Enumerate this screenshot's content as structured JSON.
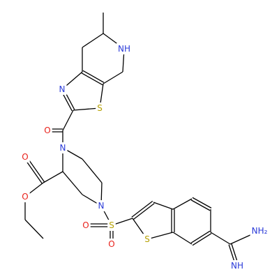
{
  "atoms": [
    {
      "label": "NH"
    },
    {
      "label": "N"
    },
    {
      "label": "S"
    },
    {
      "label": "O"
    },
    {
      "label": "N"
    },
    {
      "label": "O"
    },
    {
      "label": "O"
    },
    {
      "label": "N"
    },
    {
      "label": "O"
    },
    {
      "label": "S"
    },
    {
      "label": "O"
    },
    {
      "label": "S"
    },
    {
      "label": "NH₂"
    },
    {
      "label": "NH"
    }
  ]
}
